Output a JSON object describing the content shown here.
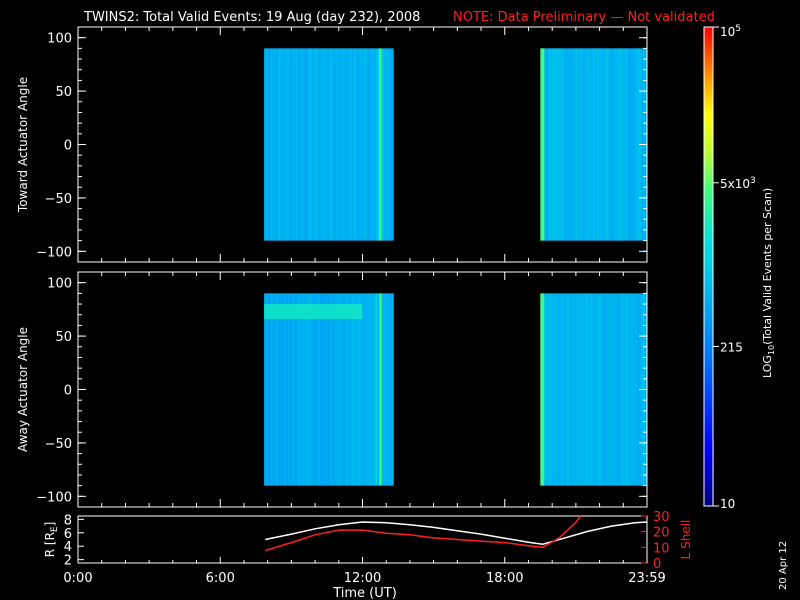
{
  "title": {
    "main": "TWINS2: Total Valid Events: 19 Aug (day 232), 2008",
    "note": "NOTE: Data Preliminary — Not validated"
  },
  "run_date": "20 Apr 12",
  "colors": {
    "background": "#000000",
    "axes": "#ffffff",
    "note": "#ff2020",
    "l_shell_line": "#ff2020",
    "r_line": "#ffffff"
  },
  "chart_data": [
    {
      "type": "heatmap",
      "name": "toward",
      "ylabel": "Toward Actuator Angle",
      "ylim": [
        -110,
        110
      ],
      "yticks": [
        100,
        50,
        0,
        -50,
        -100
      ],
      "ytick_labels": [
        "100",
        "50",
        "0",
        "−50",
        "−100"
      ],
      "xlim": [
        0,
        24
      ],
      "xticks": [
        0,
        6,
        12,
        18,
        24
      ],
      "data_blocks": [
        {
          "t_start": 7.85,
          "t_end": 13.3,
          "angle_min": -90,
          "angle_max": 90,
          "base_level": 0.44
        },
        {
          "t_start": 19.5,
          "t_end": 24.0,
          "angle_min": -90,
          "angle_max": 90,
          "base_level": 0.45
        }
      ]
    },
    {
      "type": "heatmap",
      "name": "away",
      "ylabel": "Away Actuator Angle",
      "ylim": [
        -110,
        110
      ],
      "yticks": [
        100,
        50,
        0,
        -50,
        -100
      ],
      "ytick_labels": [
        "100",
        "50",
        "0",
        "−50",
        "−100"
      ],
      "xlim": [
        0,
        24
      ],
      "xticks": [
        0,
        6,
        12,
        18,
        24
      ],
      "data_blocks": [
        {
          "t_start": 7.85,
          "t_end": 13.3,
          "angle_min": -90,
          "angle_max": 90,
          "base_level": 0.43
        },
        {
          "t_start": 19.5,
          "t_end": 24.0,
          "angle_min": -90,
          "angle_max": 90,
          "base_level": 0.45
        }
      ]
    },
    {
      "type": "line",
      "name": "orbit",
      "ylabel_left": "R [R",
      "ylabel_left_sub": "E",
      "ylabel_left_close": "]",
      "ylabel_right": "L Shell",
      "ylim_left": [
        1.5,
        8.5
      ],
      "ylim_right": [
        0,
        30
      ],
      "yticks_left": [
        2,
        4,
        6,
        8
      ],
      "yticks_right": [
        0,
        10,
        20,
        30
      ],
      "xlim": [
        0,
        24
      ],
      "xticks": [
        0,
        6,
        12,
        18,
        24
      ],
      "xtick_labels": [
        "0:00",
        "6:00",
        "12:00",
        "18:00",
        "23:59"
      ],
      "xlabel": "Time (UT)",
      "series": [
        {
          "axis": "left",
          "color": "#ffffff",
          "x": [
            7.9,
            9.0,
            10.0,
            11.0,
            12.0,
            13.0,
            14.0,
            15.0,
            16.0,
            17.0,
            18.0,
            19.0,
            19.6,
            20.5,
            21.5,
            22.5,
            23.5,
            24.0
          ],
          "y": [
            5.0,
            5.8,
            6.6,
            7.2,
            7.6,
            7.5,
            7.2,
            6.8,
            6.3,
            5.8,
            5.2,
            4.6,
            4.3,
            5.2,
            6.2,
            7.0,
            7.5,
            7.6
          ]
        },
        {
          "axis": "right",
          "color": "#ff2020",
          "x": [
            7.9,
            9.0,
            10.0,
            11.0,
            12.0,
            13.0,
            14.0,
            15.0,
            16.0,
            17.0,
            18.0,
            19.0,
            19.6,
            20.3,
            21.0,
            21.2
          ],
          "y": [
            8,
            13,
            18,
            21,
            21,
            19,
            18,
            16,
            15,
            14,
            13,
            11,
            10,
            16,
            26,
            30
          ]
        }
      ]
    },
    {
      "type": "colorbar",
      "label": "LOG",
      "label_sub": "10",
      "label_rest": "(Total Valid Events per Scan)",
      "range": [
        10,
        100000
      ],
      "tick_values": [
        10,
        215,
        5000,
        100000
      ],
      "tick_labels": [
        {
          "base": "10",
          "exp": ""
        },
        {
          "base": "215",
          "exp": ""
        },
        {
          "base": "5x10",
          "exp": "3"
        },
        {
          "base": "10",
          "exp": "5"
        }
      ]
    }
  ]
}
